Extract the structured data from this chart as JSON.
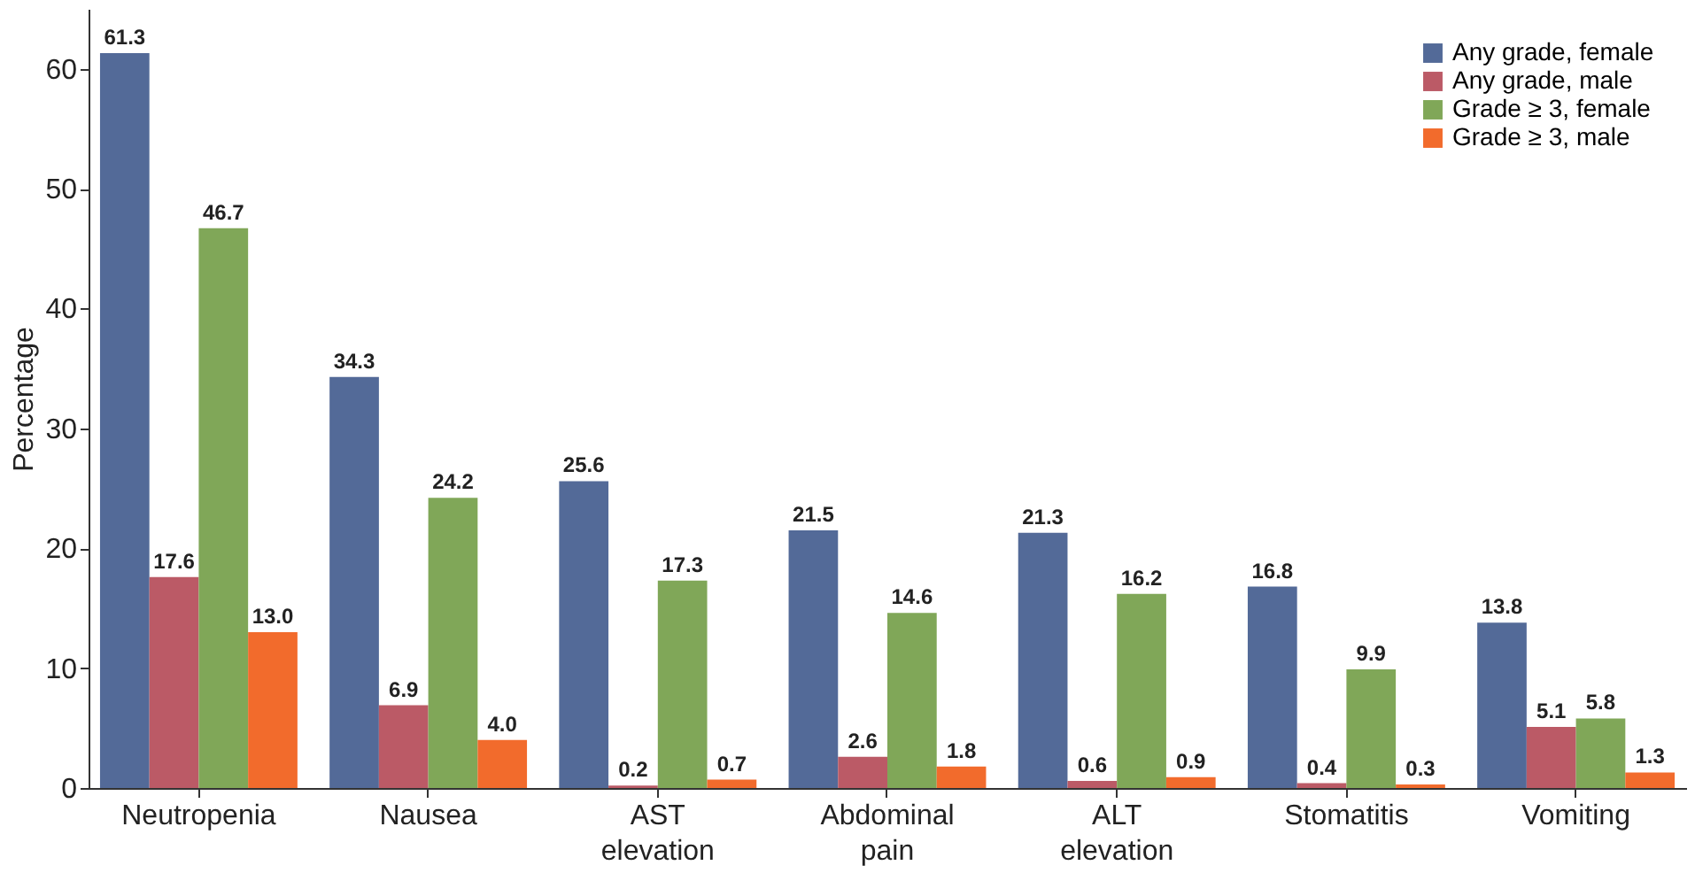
{
  "chart_data": {
    "type": "bar",
    "ylabel": "Percentage",
    "categories": [
      "Neutropenia",
      "Nausea",
      "AST elevation",
      "Abdominal pain",
      "ALT elevation",
      "Stomatitis",
      "Vomiting"
    ],
    "series": [
      {
        "name": "Any grade, female",
        "color": "#536a98",
        "values": [
          61.3,
          34.3,
          25.6,
          21.5,
          21.3,
          16.8,
          13.8
        ],
        "value_labels": [
          "61.3",
          "34.3",
          "25.6",
          "21.5",
          "21.3",
          "16.8",
          "13.8"
        ]
      },
      {
        "name": "Any grade, male",
        "color": "#bb5a66",
        "values": [
          17.6,
          6.9,
          0.2,
          2.6,
          0.6,
          0.4,
          5.1
        ],
        "value_labels": [
          "17.6",
          "6.9",
          "0.2",
          "2.6",
          "0.6",
          "0.4",
          "5.1"
        ]
      },
      {
        "name": "Grade ≥ 3, female",
        "color": "#80a758",
        "values": [
          46.7,
          24.2,
          17.3,
          14.6,
          16.2,
          9.9,
          5.8
        ],
        "value_labels": [
          "46.7",
          "24.2",
          "17.3",
          "14.6",
          "16.2",
          "9.9",
          "5.8"
        ]
      },
      {
        "name": "Grade ≥ 3, male",
        "color": "#f26b2c",
        "values": [
          13.0,
          4.0,
          0.7,
          1.8,
          0.9,
          0.3,
          1.3
        ],
        "value_labels": [
          "13.0",
          "4.0",
          "0.7",
          "1.8",
          "0.9",
          "0.3",
          "1.3"
        ]
      }
    ],
    "ylim": [
      0,
      65
    ],
    "yticks": [
      0,
      10,
      20,
      30,
      40,
      50,
      60
    ],
    "grid": false,
    "legend": "top right"
  }
}
